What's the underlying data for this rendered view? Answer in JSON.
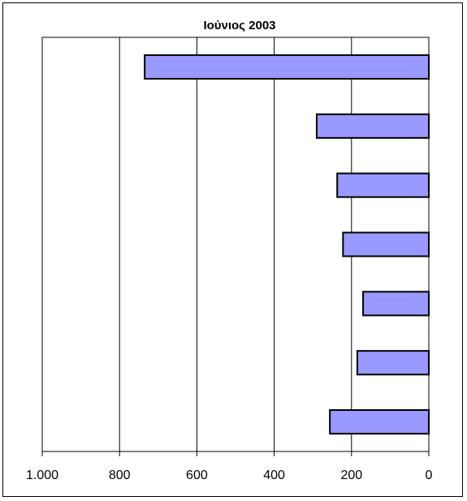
{
  "chart_data": {
    "type": "bar",
    "orientation": "horizontal",
    "x_axis_reversed": true,
    "title": "Ιούνιος 2003",
    "xlabel": "",
    "ylabel": "",
    "xlim": [
      0,
      1000
    ],
    "x_ticks": [
      0,
      200,
      400,
      600,
      800,
      1000
    ],
    "x_tick_labels": [
      "0",
      "200",
      "400",
      "600",
      "800",
      "1.000"
    ],
    "grid": true,
    "legend": "none",
    "categories": [
      "",
      "",
      "",
      "",
      "",
      "",
      ""
    ],
    "values": [
      735,
      290,
      237,
      222,
      170,
      185,
      256
    ],
    "colors": {
      "bar_fill": "#9999ff",
      "bar_stroke": "#000000",
      "grid": "#000000",
      "background": "#ffffff"
    }
  }
}
